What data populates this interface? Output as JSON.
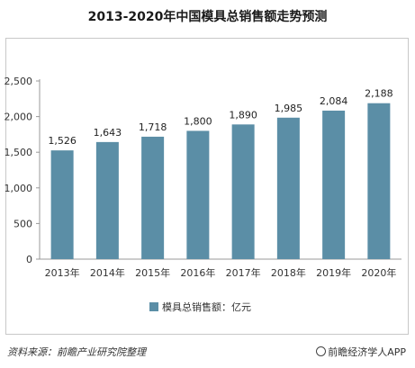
{
  "chart_data": {
    "type": "bar",
    "title": "2013-2020年中国模具总销售额走势预测",
    "categories": [
      "2013年",
      "2014年",
      "2015年",
      "2016年",
      "2017年",
      "2018年",
      "2019年",
      "2020年"
    ],
    "series": [
      {
        "name": "模具总销售额：亿元",
        "values": [
          1526,
          1643,
          1718,
          1800,
          1890,
          1985,
          2084,
          2188
        ]
      }
    ],
    "data_labels": [
      "1,526",
      "1,643",
      "1,718",
      "1,800",
      "1,890",
      "1,985",
      "2,084",
      "2,188"
    ],
    "yticks": [
      "0",
      "500",
      "1,000",
      "1,500",
      "2,000",
      "2,500"
    ],
    "ylim": [
      0,
      2500
    ],
    "xlabel": "",
    "ylabel": "",
    "grid": false,
    "legend_position": "bottom",
    "colors": {
      "bar": "#5b8ea6",
      "axis": "#999999"
    }
  },
  "footer": {
    "source": "资料来源：前瞻产业研究院整理",
    "brand": "前瞻经济学人APP"
  }
}
